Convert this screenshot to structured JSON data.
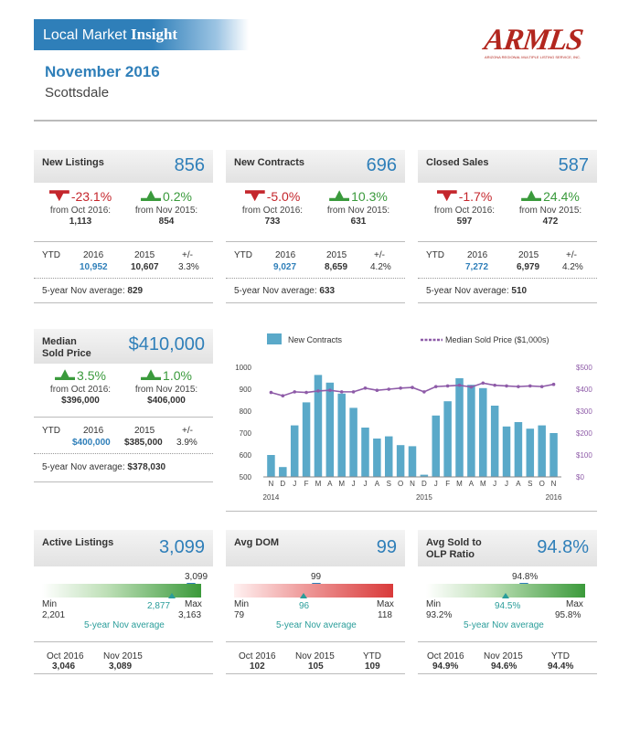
{
  "header": {
    "banner_prefix": "Local Market",
    "banner_bold": "Insight",
    "logo_text": "ARMLS",
    "logo_subtext": "ARIZONA REGIONAL MULTIPLE LISTING SERVICE, INC.",
    "title": "November 2016",
    "subtitle": "Scottsdale"
  },
  "cards": {
    "new_listings": {
      "label": "New Listings",
      "value": "856",
      "chg1": {
        "pct": "-23.1%",
        "from": "from Oct 2016:",
        "num": "1,113",
        "dir": "down"
      },
      "chg2": {
        "pct": "0.2%",
        "from": "from Nov 2015:",
        "num": "854",
        "dir": "up"
      },
      "ytd": {
        "label": "YTD",
        "y1": "2016",
        "y2": "2015",
        "pm": "+/-",
        "v1": "10,952",
        "v2": "10,607",
        "pct": "3.3%"
      },
      "avg_label": "5-year Nov average:",
      "avg_value": "829"
    },
    "new_contracts": {
      "label": "New Contracts",
      "value": "696",
      "chg1": {
        "pct": "-5.0%",
        "from": "from Oct 2016:",
        "num": "733",
        "dir": "down"
      },
      "chg2": {
        "pct": "10.3%",
        "from": "from Nov 2015:",
        "num": "631",
        "dir": "up"
      },
      "ytd": {
        "label": "YTD",
        "y1": "2016",
        "y2": "2015",
        "pm": "+/-",
        "v1": "9,027",
        "v2": "8,659",
        "pct": "4.2%"
      },
      "avg_label": "5-year Nov average:",
      "avg_value": "633"
    },
    "closed_sales": {
      "label": "Closed Sales",
      "value": "587",
      "chg1": {
        "pct": "-1.7%",
        "from": "from Oct 2016:",
        "num": "597",
        "dir": "down"
      },
      "chg2": {
        "pct": "24.4%",
        "from": "from Nov 2015:",
        "num": "472",
        "dir": "up"
      },
      "ytd": {
        "label": "YTD",
        "y1": "2016",
        "y2": "2015",
        "pm": "+/-",
        "v1": "7,272",
        "v2": "6,979",
        "pct": "4.2%"
      },
      "avg_label": "5-year Nov average:",
      "avg_value": "510"
    },
    "median_price": {
      "label_line1": "Median",
      "label_line2": "Sold Price",
      "value": "$410,000",
      "chg1": {
        "pct": "3.5%",
        "from": "from Oct 2016:",
        "num": "$396,000",
        "dir": "up"
      },
      "chg2": {
        "pct": "1.0%",
        "from": "from Nov 2015:",
        "num": "$406,000",
        "dir": "up"
      },
      "ytd": {
        "label": "YTD",
        "y1": "2016",
        "y2": "2015",
        "pm": "+/-",
        "v1": "$400,000",
        "v2": "$385,000",
        "pct": "3.9%"
      },
      "avg_label": "5-year Nov average:",
      "avg_value": "$378,030"
    }
  },
  "gauges": {
    "active": {
      "label": "Active Listings",
      "value": "3,099",
      "current": "3,099",
      "min_label": "Min",
      "min": "2,201",
      "max_label": "Max",
      "max": "3,163",
      "avg": "2,877",
      "avg_label": "5-year Nov average",
      "position": 0.934,
      "avg_position": 0.753,
      "foot": [
        {
          "label": "Oct 2016",
          "value": "3,046"
        },
        {
          "label": "Nov 2015",
          "value": "3,089"
        }
      ]
    },
    "dom": {
      "label": "Avg DOM",
      "value": "99",
      "current": "99",
      "min_label": "Min",
      "min": "79",
      "max_label": "Max",
      "max": "118",
      "avg": "96",
      "avg_label": "5-year Nov average",
      "position": 0.513,
      "avg_position": 0.436,
      "foot": [
        {
          "label": "Oct 2016",
          "value": "102"
        },
        {
          "label": "Nov 2015",
          "value": "105"
        },
        {
          "label": "YTD",
          "value": "109"
        }
      ]
    },
    "olp": {
      "label_line1": "Avg Sold to",
      "label_line2": "OLP Ratio",
      "value": "94.8%",
      "current": "94.8%",
      "min_label": "Min",
      "min": "93.2%",
      "max_label": "Max",
      "max": "95.8%",
      "avg": "94.5%",
      "avg_label": "5-year Nov average",
      "position": 0.615,
      "avg_position": 0.5,
      "foot": [
        {
          "label": "Oct 2016",
          "value": "94.9%"
        },
        {
          "label": "Nov 2015",
          "value": "94.6%"
        },
        {
          "label": "YTD",
          "value": "94.4%"
        }
      ]
    }
  },
  "chart_data": {
    "type": "bar",
    "legend_bar": "New Contracts",
    "legend_line": "Median Sold Price ($1,000s)",
    "categories": [
      "N",
      "D",
      "J",
      "F",
      "M",
      "A",
      "M",
      "J",
      "J",
      "A",
      "S",
      "O",
      "N",
      "D",
      "J",
      "F",
      "M",
      "A",
      "M",
      "J",
      "J",
      "A",
      "S",
      "O",
      "N"
    ],
    "year_labels": [
      "2014",
      "2015",
      "2016"
    ],
    "left_axis": {
      "ticks": [
        "1000",
        "900",
        "800",
        "700",
        "600",
        "500"
      ],
      "min": 500,
      "max": 1000
    },
    "right_axis": {
      "ticks": [
        "$500",
        "$400",
        "$300",
        "$200",
        "$100",
        "$0"
      ],
      "min": 0,
      "max": 500
    },
    "series": [
      {
        "name": "New Contracts",
        "axis": "left",
        "color": "#5aa9c9",
        "values": [
          600,
          545,
          735,
          840,
          965,
          930,
          880,
          815,
          725,
          675,
          685,
          645,
          640,
          510,
          780,
          845,
          950,
          920,
          905,
          825,
          730,
          750,
          720,
          735,
          700
        ]
      },
      {
        "name": "Median Sold Price ($1,000s)",
        "axis": "right",
        "color": "#8e5ba8",
        "values": [
          385,
          370,
          388,
          385,
          392,
          395,
          388,
          388,
          405,
          395,
          400,
          405,
          408,
          388,
          412,
          415,
          418,
          410,
          428,
          418,
          415,
          412,
          415,
          412,
          422
        ]
      }
    ]
  }
}
